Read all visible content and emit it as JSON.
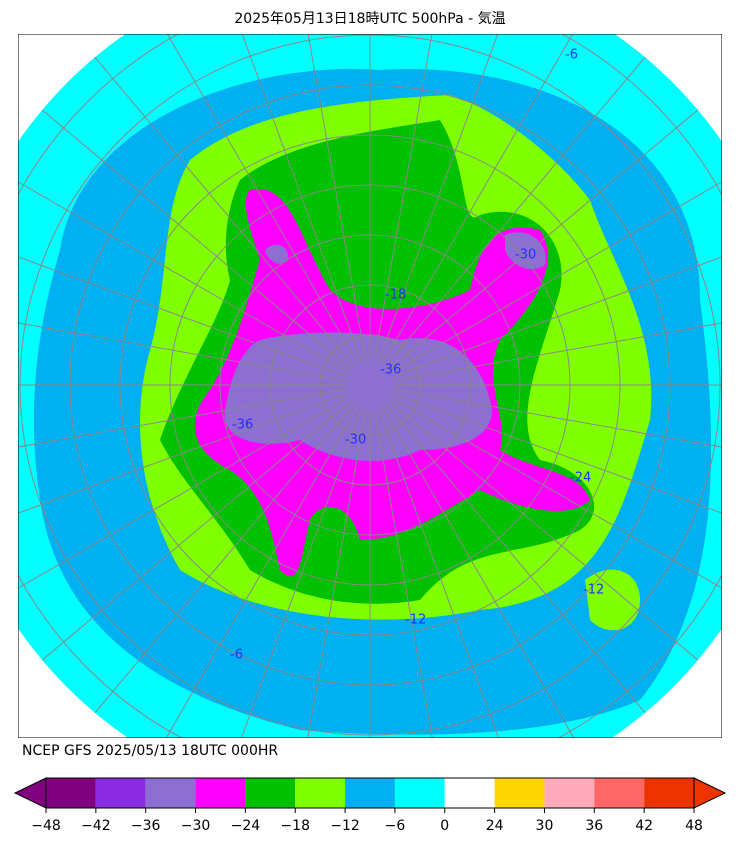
{
  "header": {
    "title": "2025年05月13日18時UTC 500hPa - 気温"
  },
  "map": {
    "contour_labels": [
      "-6",
      "-6",
      "-12",
      "-12",
      "-18",
      "-24",
      "-30",
      "-30",
      "-36",
      "-36"
    ]
  },
  "footer": {
    "source": "NCEP GFS 2025/05/13 18UTC 000HR"
  },
  "colorbar": {
    "ticks": [
      {
        "value": -48,
        "label": "−48"
      },
      {
        "value": -42,
        "label": "−42"
      },
      {
        "value": -36,
        "label": "−36"
      },
      {
        "value": -30,
        "label": "−30"
      },
      {
        "value": -24,
        "label": "−24"
      },
      {
        "value": -18,
        "label": "−18"
      },
      {
        "value": -12,
        "label": "−12"
      },
      {
        "value": -6,
        "label": "−6"
      },
      0,
      24,
      30,
      36,
      42,
      48
    ],
    "colors": [
      "#800080",
      "#8a2be2",
      "#8c6fd0",
      "#ff00ff",
      "#00c000",
      "#80ff00",
      "#00b0f0",
      "#00ffff",
      "#ffffff",
      "#ffd700",
      "#ffaabb",
      "#ff6666",
      "#ee3300"
    ],
    "under_color": "#800080",
    "over_color": "#ee3300"
  }
}
